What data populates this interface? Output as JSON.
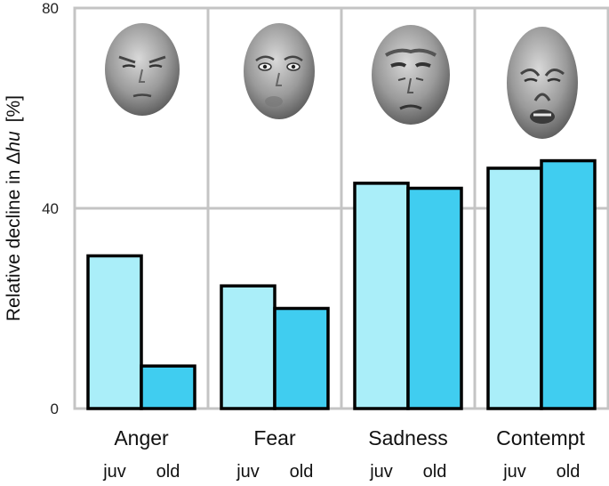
{
  "chart_data": {
    "type": "bar",
    "ylabel_main": "Relative decline in Δ",
    "ylabel_italic": "hu",
    "ylabel_unit": "[%]",
    "ylim": [
      0,
      80
    ],
    "yticks": [
      "0",
      "40",
      "80"
    ],
    "grid": true,
    "categories": [
      "Anger",
      "Fear",
      "Sadness",
      "Contempt"
    ],
    "group_labels": [
      "juv",
      "old"
    ],
    "series": [
      {
        "name": "juv",
        "color": "#aaeef9",
        "values": [
          30.5,
          24.5,
          45,
          48
        ]
      },
      {
        "name": "old",
        "color": "#40cdf0",
        "values": [
          8.5,
          20,
          44,
          49.5
        ]
      }
    ],
    "face_icons": [
      "angry-face-icon",
      "fearful-face-icon",
      "sad-face-icon",
      "contempt-face-icon"
    ]
  }
}
